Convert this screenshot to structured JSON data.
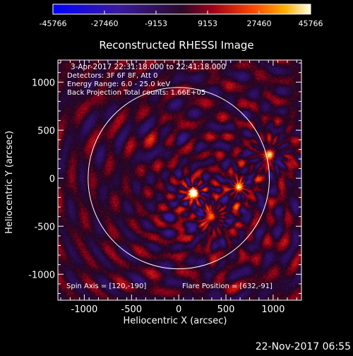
{
  "chart_data": {
    "type": "heatmap",
    "title": "Reconstructed RHESSI Image",
    "xlabel": "Heliocentric X (arcsec)",
    "ylabel": "Heliocentric Y (arcsec)",
    "xlim": [
      -1280,
      1300
    ],
    "ylim": [
      -1270,
      1230
    ],
    "xticks": [
      -1000,
      -500,
      0,
      500,
      1000
    ],
    "yticks": [
      -1000,
      -500,
      0,
      500,
      1000
    ],
    "colorbar": {
      "range": [
        -45766,
        45766
      ],
      "ticks": [
        -45766,
        -27460,
        -9153,
        9153,
        27460,
        45766
      ],
      "tick_labels": [
        "-45766",
        "-27460",
        "-9153",
        "9153",
        "27460",
        "45766"
      ]
    },
    "solar_limb": {
      "center": [
        0,
        0
      ],
      "radius": 960
    },
    "flare_position": [
      632,
      -91
    ],
    "spin_axis": [
      120,
      -190
    ],
    "sources": [
      {
        "x": 150,
        "y": -150,
        "strength": 1.0
      },
      {
        "x": 632,
        "y": -91,
        "strength": 0.6
      },
      {
        "x": 960,
        "y": 250,
        "strength": 0.5
      },
      {
        "x": 350,
        "y": -400,
        "strength": 0.45
      }
    ],
    "annotations": [
      "3-Apr-2017 22:31:18.000 to 22:41:18.000",
      "Detectors: 3F 6F 8F, Att 0",
      "Energy Range: 6.0 - 25.0 keV",
      "Back Projection    Total counts: 1.66E+05",
      "Spin Axis = [120,-190]",
      "Flare Position = [632,-91]"
    ]
  },
  "footer": {
    "timestamp": "22-Nov-2017 06:55"
  },
  "colors": {
    "background": "#000000",
    "axes": "#ffffff",
    "limb": "#ffffff"
  }
}
